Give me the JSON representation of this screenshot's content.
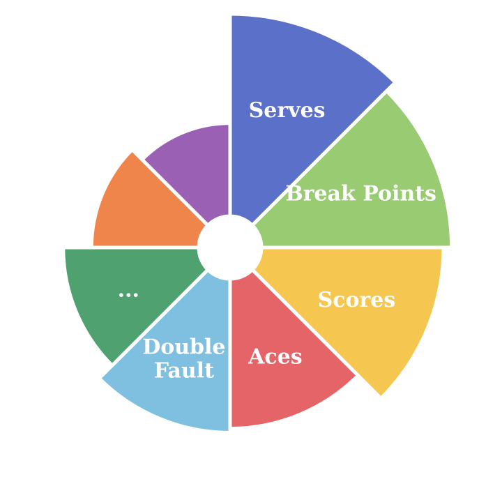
{
  "chart_data": {
    "type": "pie",
    "variant": "nightingale-rose",
    "slices": [
      {
        "label": [
          "Serves"
        ],
        "value": 100,
        "color": "#5b70c8"
      },
      {
        "label": [
          "Break Points"
        ],
        "value": 94,
        "color": "#99cc72"
      },
      {
        "label": [
          "Scores"
        ],
        "value": 90,
        "color": "#f5c751"
      },
      {
        "label": [
          "Aces"
        ],
        "value": 74,
        "color": "#e56467"
      },
      {
        "label": [
          "Double",
          "Fault"
        ],
        "value": 76,
        "color": "#7fbfe0"
      },
      {
        "label": [
          "..."
        ],
        "value": 67,
        "color": "#4fa170"
      },
      {
        "label": [
          ""
        ],
        "value": 53,
        "color": "#f0854c"
      },
      {
        "label": [
          ""
        ],
        "value": 46,
        "color": "#9960b4"
      }
    ],
    "title": "",
    "legend": "none"
  }
}
